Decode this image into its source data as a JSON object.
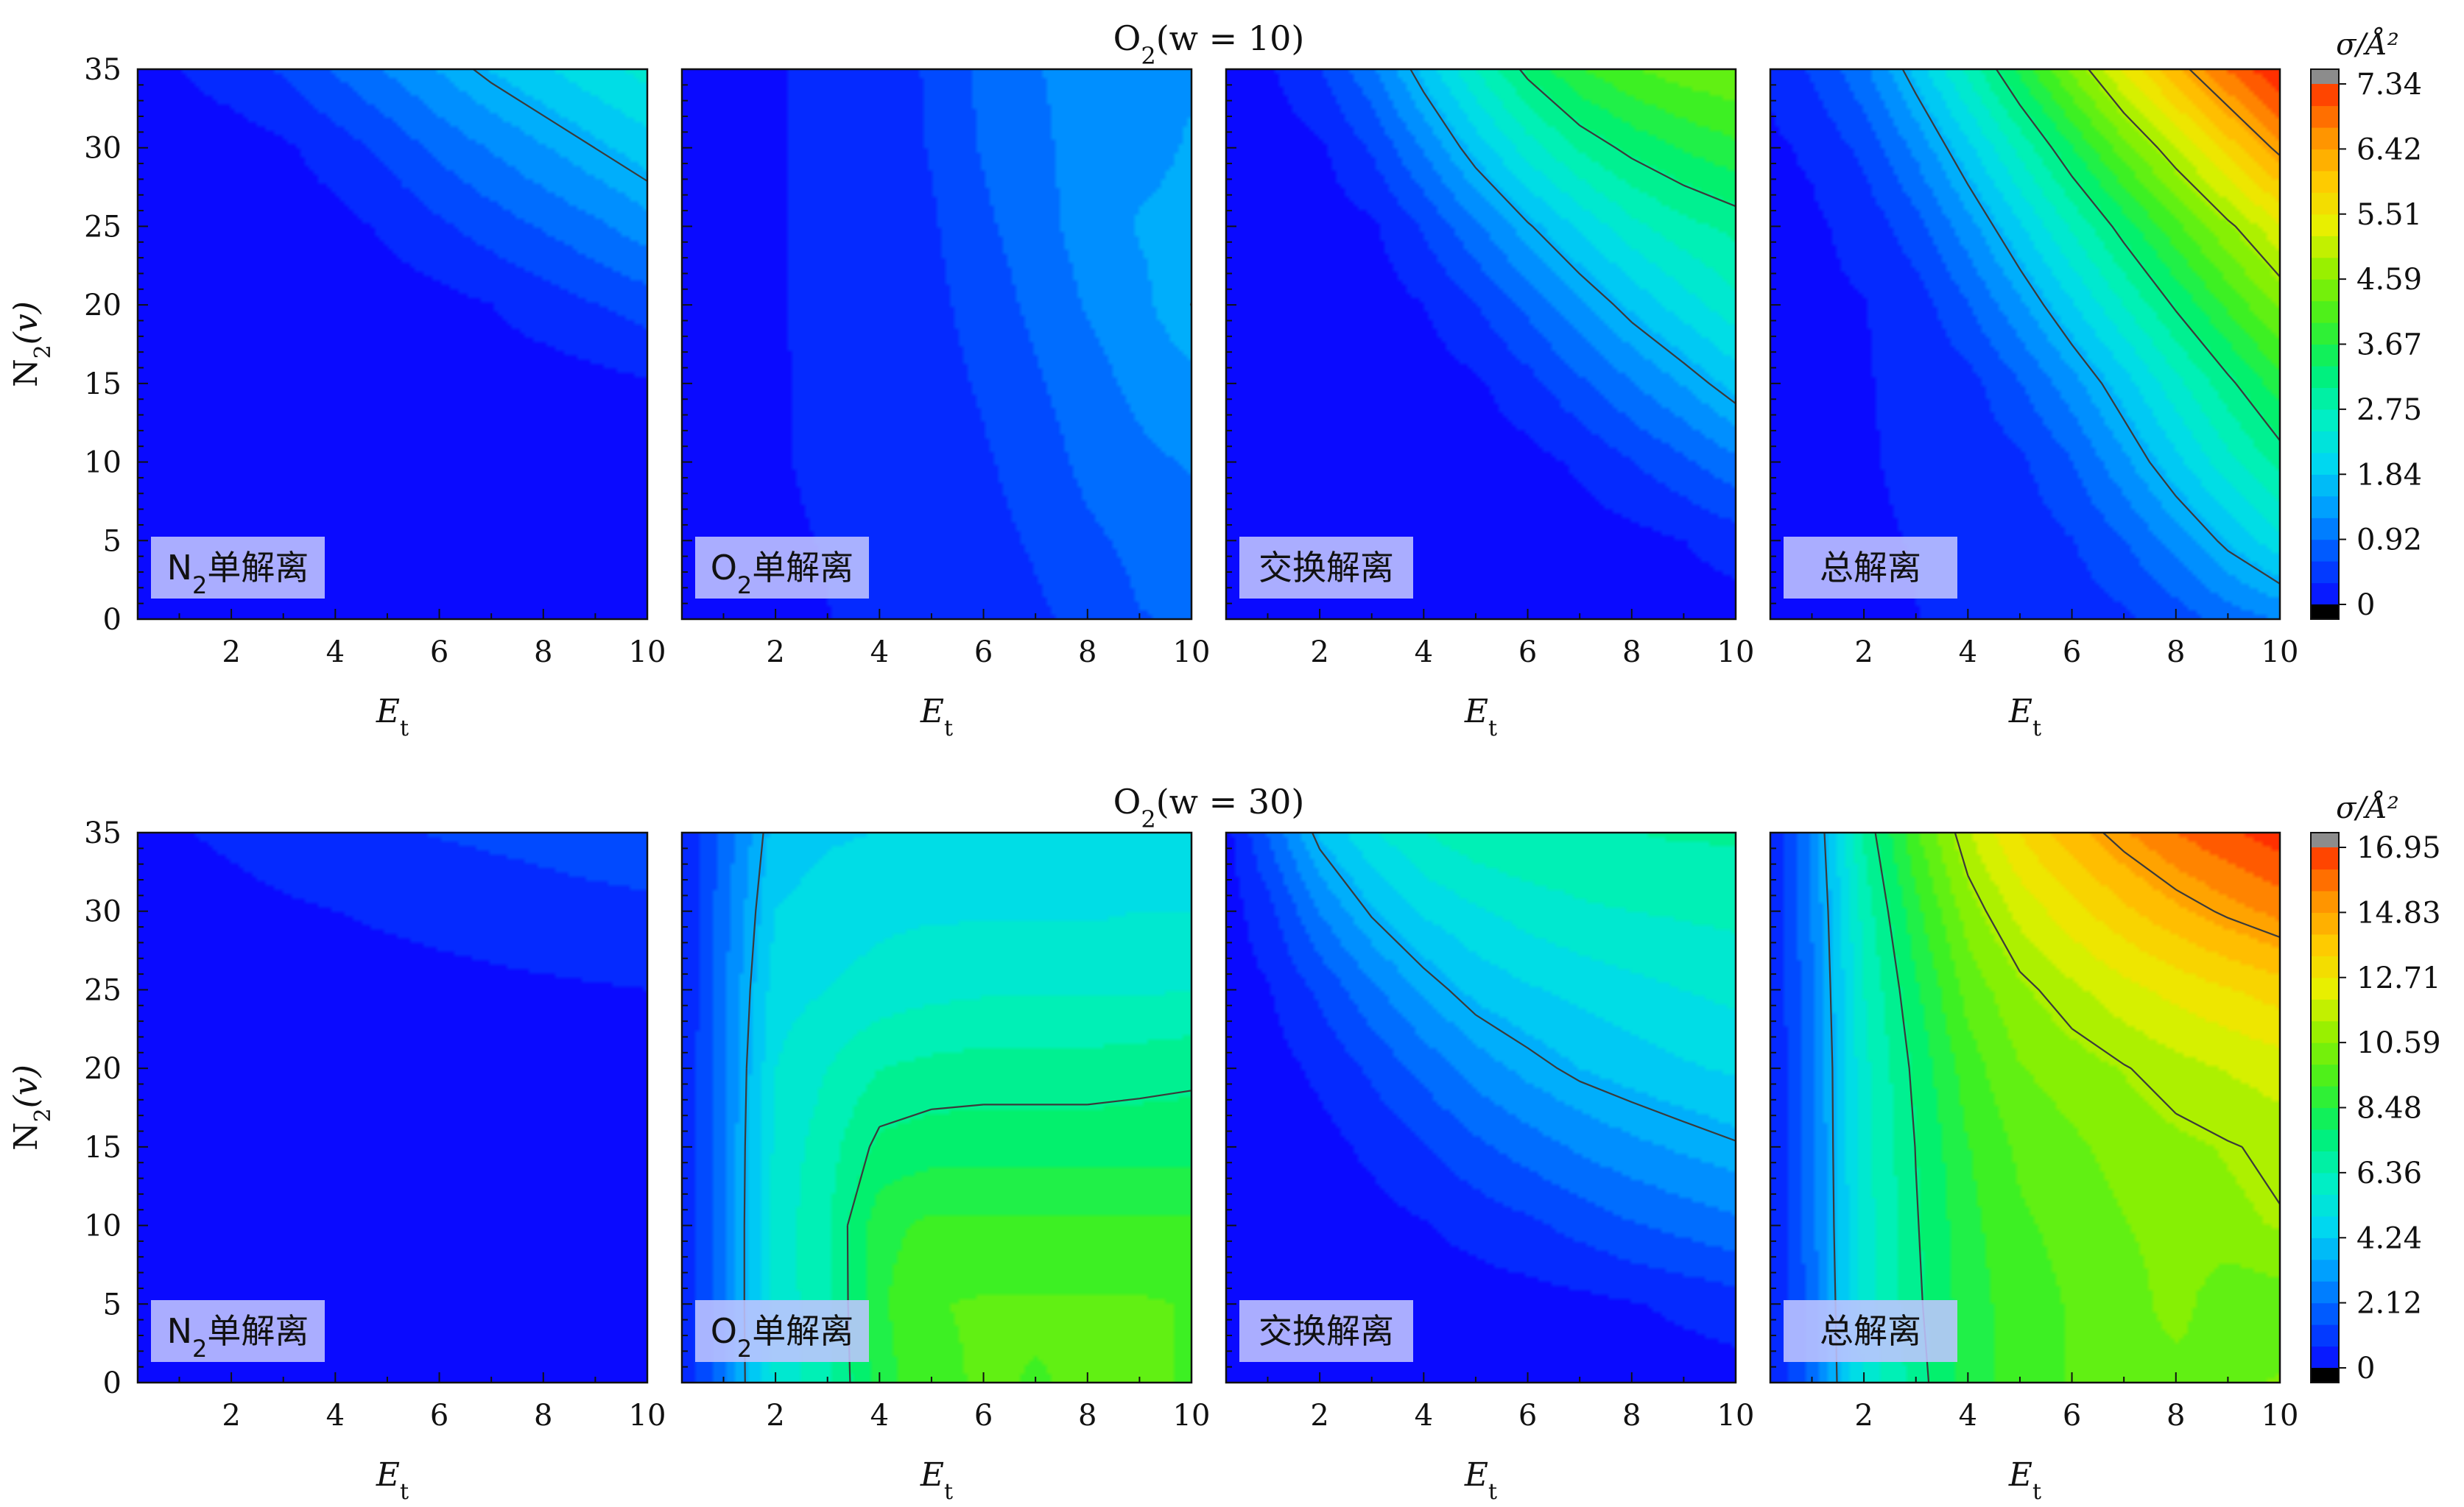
{
  "figure": {
    "x_axis_label": "E",
    "x_axis_sub": "t",
    "y_axis_label": "N",
    "y_axis_sub": "2",
    "y_axis_suffix": "(v)",
    "colorbar_title": "σ/Å²"
  },
  "colors": {
    "colormap": [
      "#0a0aff",
      "#0050ff",
      "#009cff",
      "#00d8f0",
      "#00f0c0",
      "#00f070",
      "#40f020",
      "#90f000",
      "#e8f000",
      "#ffc800",
      "#ff8c00",
      "#ff3000"
    ],
    "contour_line": "#3a3a3a",
    "panel_label_bg": "#c0c4ff",
    "colorbar_over": "#8c8c8c",
    "colorbar_under": "#000000"
  },
  "chart_data": [
    {
      "type": "heatmap",
      "row_title": "O₂(w = 10)",
      "row_title_parts": [
        "O",
        "2",
        "(w = 10)"
      ],
      "x": [
        0.2,
        1,
        2,
        3,
        4,
        5,
        6,
        7,
        8,
        9,
        10
      ],
      "y": [
        0,
        5,
        10,
        15,
        20,
        25,
        30,
        35
      ],
      "xlim": [
        0.2,
        10
      ],
      "ylim": [
        0,
        35
      ],
      "xticks": [
        "2",
        "4",
        "6",
        "8",
        "10"
      ],
      "yticks": [
        "0",
        "5",
        "10",
        "15",
        "20",
        "25",
        "30",
        "35"
      ],
      "vmax": 7.34,
      "colorbar_ticks": [
        "0",
        "0.92",
        "1.84",
        "2.75",
        "3.67",
        "4.59",
        "5.51",
        "6.42",
        "7.34"
      ],
      "panels": [
        {
          "label_parts": [
            "N",
            "2",
            "单解离"
          ],
          "z": [
            [
              0,
              0,
              0,
              0,
              0,
              0,
              0,
              0,
              0,
              0,
              0
            ],
            [
              0,
              0,
              0,
              0,
              0,
              0,
              0,
              0,
              0,
              0,
              0
            ],
            [
              0,
              0,
              0,
              0,
              0,
              0,
              0,
              0,
              0,
              0,
              0
            ],
            [
              0,
              0,
              0,
              0,
              0,
              0,
              0,
              0,
              0,
              0.05,
              0.12
            ],
            [
              0,
              0,
              0,
              0,
              0,
              0,
              0.05,
              0.15,
              0.3,
              0.45,
              0.6
            ],
            [
              0,
              0,
              0,
              0,
              0.05,
              0.2,
              0.4,
              0.6,
              0.8,
              1.0,
              1.25
            ],
            [
              0,
              0,
              0,
              0.1,
              0.3,
              0.55,
              0.85,
              1.1,
              1.35,
              1.6,
              1.85
            ],
            [
              0.05,
              0.15,
              0.3,
              0.5,
              0.8,
              1.1,
              1.4,
              1.7,
              1.95,
              2.2,
              2.4
            ]
          ]
        },
        {
          "label_parts": [
            "O",
            "2",
            "单解离"
          ],
          "z": [
            [
              0.08,
              0.1,
              0.12,
              0.15,
              0.18,
              0.22,
              0.28,
              0.4,
              0.55,
              0.75,
              0.8
            ],
            [
              0.08,
              0.1,
              0.13,
              0.16,
              0.2,
              0.25,
              0.35,
              0.5,
              0.7,
              0.85,
              0.9
            ],
            [
              0.08,
              0.1,
              0.14,
              0.18,
              0.22,
              0.3,
              0.42,
              0.6,
              0.85,
              1.0,
              1.1
            ],
            [
              0.08,
              0.1,
              0.14,
              0.18,
              0.24,
              0.34,
              0.5,
              0.72,
              0.95,
              1.15,
              1.3
            ],
            [
              0.08,
              0.1,
              0.14,
              0.2,
              0.26,
              0.38,
              0.58,
              0.85,
              1.1,
              1.3,
              1.6
            ],
            [
              0.08,
              0.1,
              0.14,
              0.2,
              0.28,
              0.42,
              0.7,
              0.95,
              1.2,
              1.4,
              1.45
            ],
            [
              0.08,
              0.1,
              0.14,
              0.2,
              0.3,
              0.48,
              0.8,
              1.0,
              1.2,
              1.3,
              1.4
            ],
            [
              0.08,
              0.1,
              0.14,
              0.2,
              0.3,
              0.5,
              0.85,
              1.05,
              1.2,
              1.3,
              1.35
            ]
          ]
        },
        {
          "label_parts": [
            "交换解离"
          ],
          "z": [
            [
              0,
              0,
              0,
              0,
              0,
              0,
              0,
              0,
              0,
              0,
              0
            ],
            [
              0,
              0,
              0,
              0,
              0,
              0,
              0,
              0,
              0.05,
              0.15,
              0.3
            ],
            [
              0,
              0,
              0,
              0,
              0,
              0,
              0.05,
              0.2,
              0.45,
              0.7,
              1.0
            ],
            [
              0,
              0,
              0,
              0,
              0,
              0.1,
              0.35,
              0.7,
              1.05,
              1.4,
              1.8
            ],
            [
              0,
              0,
              0,
              0,
              0.15,
              0.45,
              0.85,
              1.3,
              1.75,
              2.15,
              2.5
            ],
            [
              0,
              0,
              0,
              0.1,
              0.5,
              1.0,
              1.55,
              2.05,
              2.5,
              2.8,
              3.0
            ],
            [
              0,
              0,
              0.1,
              0.5,
              1.1,
              1.8,
              2.45,
              2.95,
              3.3,
              3.55,
              3.75
            ],
            [
              0,
              0.1,
              0.45,
              1.0,
              1.8,
              2.6,
              3.3,
              3.8,
              4.1,
              4.3,
              4.4
            ]
          ]
        },
        {
          "label_parts": [
            "总解离"
          ],
          "z": [
            [
              0.08,
              0.1,
              0.12,
              0.15,
              0.18,
              0.22,
              0.28,
              0.4,
              0.6,
              0.9,
              1.1
            ],
            [
              0.08,
              0.1,
              0.13,
              0.16,
              0.2,
              0.28,
              0.45,
              0.75,
              1.2,
              1.7,
              2.2
            ],
            [
              0.08,
              0.1,
              0.14,
              0.18,
              0.25,
              0.4,
              0.75,
              1.3,
              1.9,
              2.5,
              3.0
            ],
            [
              0.08,
              0.1,
              0.14,
              0.2,
              0.35,
              0.75,
              1.25,
              1.85,
              2.5,
              3.1,
              3.7
            ],
            [
              0.08,
              0.1,
              0.14,
              0.3,
              0.75,
              1.3,
              1.95,
              2.6,
              3.25,
              3.9,
              4.5
            ],
            [
              0.08,
              0.1,
              0.25,
              0.65,
              1.25,
              1.95,
              2.65,
              3.35,
              4.05,
              4.7,
              5.3
            ],
            [
              0.1,
              0.2,
              0.55,
              1.15,
              1.9,
              2.7,
              3.5,
              4.3,
              5.05,
              5.8,
              6.5
            ],
            [
              0.2,
              0.5,
              1.0,
              1.8,
              2.7,
              3.6,
              4.5,
              5.4,
              6.2,
              6.9,
              7.5
            ]
          ]
        }
      ]
    },
    {
      "type": "heatmap",
      "row_title": "O₂(w = 30)",
      "row_title_parts": [
        "O",
        "2",
        "(w = 30)"
      ],
      "x": [
        0.2,
        1,
        2,
        3,
        4,
        5,
        6,
        7,
        8,
        9,
        10
      ],
      "y": [
        0,
        5,
        10,
        15,
        20,
        25,
        30,
        35
      ],
      "xlim": [
        0.2,
        10
      ],
      "ylim": [
        0,
        35
      ],
      "xticks": [
        "2",
        "4",
        "6",
        "8",
        "10"
      ],
      "yticks": [
        "0",
        "5",
        "10",
        "15",
        "20",
        "25",
        "30",
        "35"
      ],
      "vmax": 16.95,
      "colorbar_ticks": [
        "0",
        "2.12",
        "4.24",
        "6.36",
        "8.48",
        "10.59",
        "12.71",
        "14.83",
        "16.95"
      ],
      "panels": [
        {
          "label_parts": [
            "N",
            "2",
            "单解离"
          ],
          "z": [
            [
              0,
              0,
              0,
              0,
              0,
              0,
              0,
              0,
              0,
              0,
              0
            ],
            [
              0,
              0,
              0,
              0,
              0,
              0,
              0,
              0,
              0,
              0,
              0
            ],
            [
              0,
              0,
              0,
              0,
              0,
              0,
              0,
              0,
              0,
              0,
              0
            ],
            [
              0,
              0,
              0,
              0,
              0,
              0,
              0,
              0,
              0,
              0,
              0
            ],
            [
              0,
              0,
              0,
              0,
              0,
              0,
              0,
              0,
              0,
              0,
              0.05
            ],
            [
              0,
              0,
              0,
              0,
              0.05,
              0.1,
              0.15,
              0.2,
              0.25,
              0.3,
              0.35
            ],
            [
              0,
              0,
              0.1,
              0.25,
              0.35,
              0.45,
              0.55,
              0.65,
              0.75,
              0.85,
              0.9
            ],
            [
              0.1,
              0.3,
              0.5,
              0.7,
              0.85,
              1.0,
              1.1,
              1.2,
              1.3,
              1.4,
              1.5
            ]
          ]
        },
        {
          "label_parts": [
            "O",
            "2",
            "单解离"
          ],
          "z": [
            [
              0.3,
              2.4,
              5.5,
              6.5,
              8.5,
              9.4,
              9.6,
              9.5,
              9.6,
              9.6,
              9.5
            ],
            [
              0.3,
              2.4,
              5.6,
              6.5,
              8.7,
              9.5,
              9.6,
              9.6,
              9.6,
              9.6,
              9.5
            ],
            [
              0.3,
              2.4,
              5.6,
              6.6,
              8.6,
              9.0,
              9.0,
              8.95,
              8.95,
              9.0,
              9.0
            ],
            [
              0.3,
              2.4,
              5.5,
              6.4,
              7.6,
              7.8,
              7.8,
              7.8,
              7.8,
              7.8,
              7.8
            ],
            [
              0.3,
              2.4,
              5.3,
              6.0,
              6.7,
              6.9,
              7.0,
              7.0,
              7.0,
              7.1,
              7.2
            ],
            [
              0.3,
              2.3,
              5.0,
              5.3,
              5.6,
              5.8,
              5.9,
              5.9,
              5.9,
              5.9,
              6.0
            ],
            [
              0.3,
              2.2,
              4.6,
              4.9,
              5.1,
              5.2,
              5.2,
              5.2,
              5.2,
              5.3,
              5.3
            ],
            [
              0.3,
              2.0,
              4.2,
              4.5,
              4.6,
              4.6,
              4.6,
              4.6,
              4.6,
              4.6,
              4.6
            ]
          ]
        },
        {
          "label_parts": [
            "交换解离"
          ],
          "z": [
            [
              0,
              0,
              0,
              0,
              0,
              0,
              0,
              0,
              0,
              0,
              0.05
            ],
            [
              0,
              0,
              0,
              0,
              0,
              0,
              0.05,
              0.15,
              0.3,
              0.5,
              0.7
            ],
            [
              0,
              0,
              0,
              0.1,
              0.3,
              0.6,
              0.9,
              1.3,
              1.7,
              2.0,
              2.3
            ],
            [
              0,
              0,
              0.1,
              0.5,
              1.0,
              1.6,
              2.1,
              2.6,
              3.0,
              3.3,
              3.6
            ],
            [
              0,
              0.05,
              0.5,
              1.2,
              2.0,
              2.8,
              3.4,
              3.9,
              4.2,
              4.5,
              4.7
            ],
            [
              0,
              0.3,
              1.2,
              2.3,
              3.3,
              4.1,
              4.5,
              4.8,
              5.1,
              5.3,
              5.5
            ],
            [
              0,
              0.8,
              2.5,
              3.8,
              4.7,
              5.2,
              5.6,
              5.9,
              6.0,
              6.1,
              6.2
            ],
            [
              0.1,
              1.8,
              4.0,
              5.2,
              6.0,
              6.5,
              6.7,
              6.6,
              6.7,
              6.8,
              6.8
            ]
          ]
        },
        {
          "label_parts": [
            "总解离"
          ],
          "z": [
            [
              0.3,
              2.0,
              5.5,
              7.0,
              8.5,
              9.2,
              9.6,
              9.8,
              9.9,
              10.1,
              10.3
            ],
            [
              0.3,
              2.1,
              5.6,
              7.2,
              8.5,
              9.2,
              9.6,
              9.8,
              10.6,
              9.6,
              9.9
            ],
            [
              0.3,
              2.2,
              5.7,
              7.3,
              8.6,
              9.4,
              9.8,
              10.2,
              10.6,
              10.8,
              11.0
            ],
            [
              0.3,
              2.3,
              5.7,
              7.4,
              8.8,
              9.7,
              10.1,
              10.5,
              10.8,
              11.0,
              11.2
            ],
            [
              0.3,
              2.3,
              5.8,
              7.6,
              9.2,
              10.2,
              10.6,
              11.0,
              11.4,
              11.7,
              12.0
            ],
            [
              0.3,
              2.4,
              6.0,
              8.0,
              9.8,
              10.8,
              11.5,
              12.1,
              12.6,
              13.0,
              13.4
            ],
            [
              0.3,
              2.5,
              6.3,
              8.6,
              10.6,
              11.9,
              12.8,
              13.6,
              14.3,
              14.9,
              15.4
            ],
            [
              0.4,
              2.7,
              6.8,
              9.4,
              11.6,
              13.1,
              14.2,
              15.1,
              15.9,
              16.5,
              17.0
            ]
          ]
        }
      ]
    }
  ]
}
